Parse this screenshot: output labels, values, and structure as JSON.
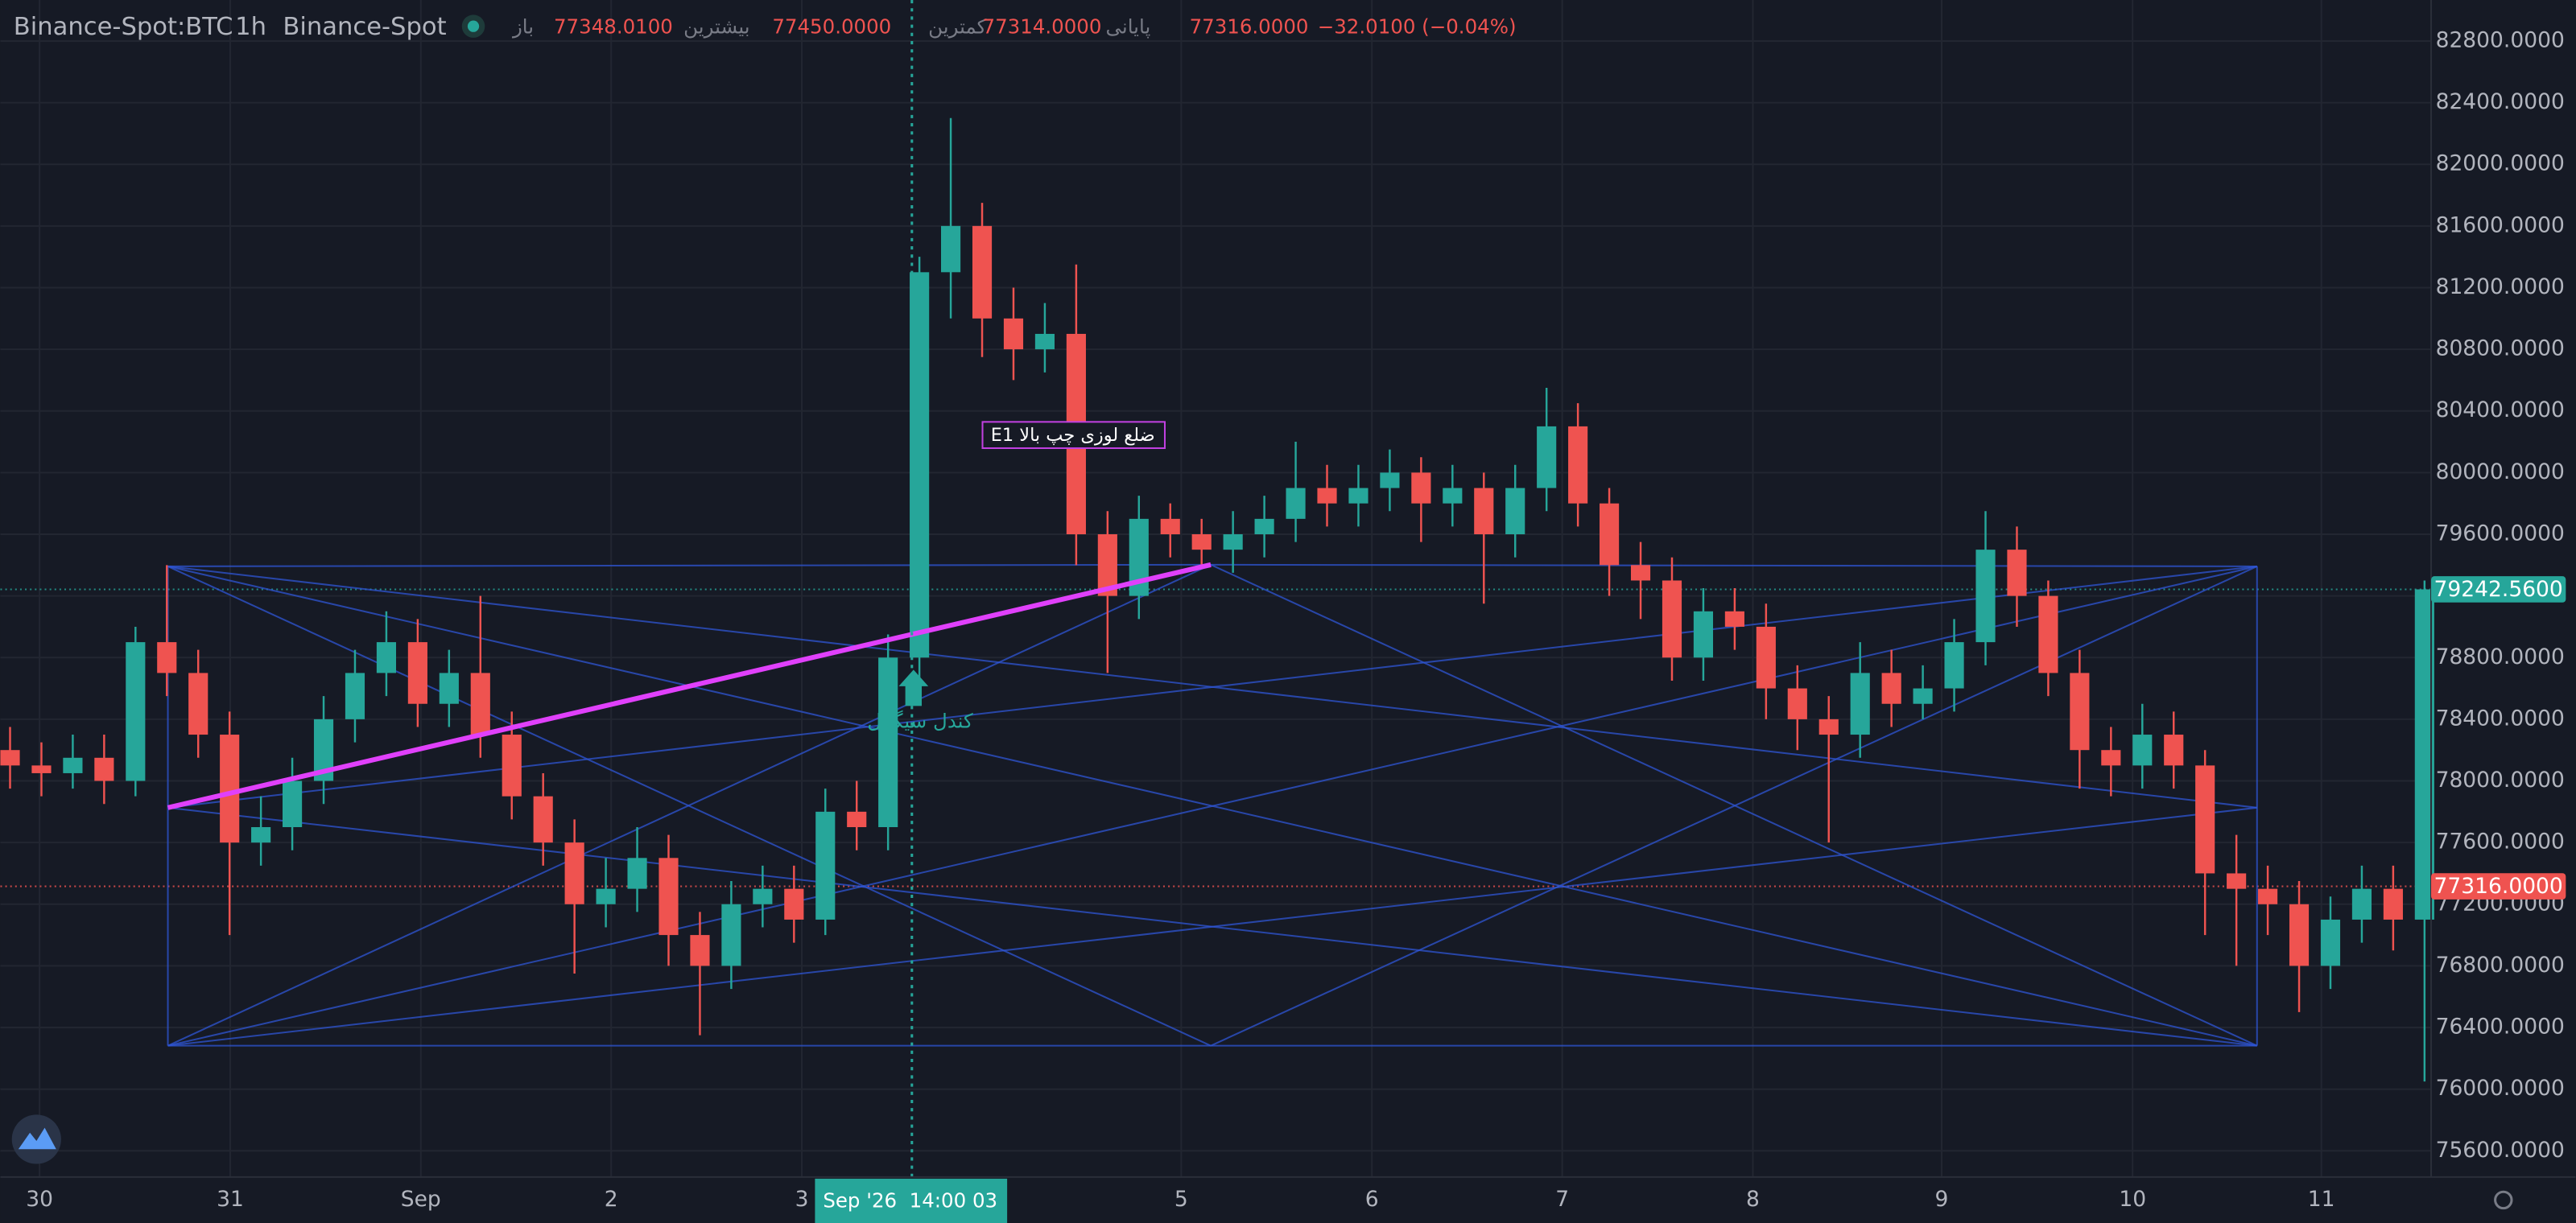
{
  "chart_data": {
    "type": "candlestick",
    "symbol": "Binance-Spot:BTC",
    "interval": "1h",
    "exchange": "Binance-Spot",
    "ohlc_legend": [
      {
        "label": "باز",
        "value": "77348.0100"
      },
      {
        "label": "بیشترین",
        "value": "77450.0000"
      },
      {
        "label": "کمترین",
        "value": "77314.0000"
      },
      {
        "label": "پایانی",
        "value": "77316.0000"
      }
    ],
    "change": "−32.0100 (−0.04%)",
    "up_color": "#26a69a",
    "down_color": "#ef5350",
    "grid": true,
    "open": [
      78200,
      78100,
      78050,
      78150,
      78000,
      78900,
      78700,
      78300,
      77600,
      77700,
      78000,
      78400,
      78700,
      78900,
      78500,
      78700,
      78300,
      77900,
      77600,
      77200,
      77300,
      77500,
      77000,
      76800,
      77200,
      77300,
      77100,
      77800,
      77700,
      78800,
      81300,
      81600,
      81000,
      80800,
      80900,
      79600,
      79200,
      79700,
      79600,
      79500,
      79600,
      79700,
      79900,
      79800,
      79900,
      80000,
      79800,
      79900,
      79600,
      79900,
      80300,
      79800,
      79400,
      79300,
      78800,
      79100,
      79000,
      78600,
      78400,
      78300,
      78700,
      78500,
      78600,
      78900,
      79500,
      79200,
      78700,
      78200,
      78100,
      78300,
      78100,
      77400,
      77300,
      77200,
      76800,
      77100,
      77300,
      77100
    ],
    "high": [
      78350,
      78250,
      78300,
      78300,
      79000,
      79400,
      78850,
      78450,
      77900,
      78150,
      78550,
      78850,
      79100,
      79050,
      78850,
      79200,
      78450,
      78050,
      77750,
      77500,
      77700,
      77650,
      77150,
      77350,
      77450,
      77450,
      77950,
      78000,
      78950,
      81400,
      82300,
      81750,
      81200,
      81100,
      81350,
      79750,
      79850,
      79800,
      79700,
      79750,
      79850,
      80200,
      80050,
      80050,
      80150,
      80100,
      80050,
      80000,
      80050,
      80550,
      80450,
      79900,
      79550,
      79450,
      79250,
      79250,
      79150,
      78750,
      78550,
      78900,
      78850,
      78750,
      79050,
      79750,
      79650,
      79300,
      78850,
      78350,
      78500,
      78450,
      78200,
      77650,
      77450,
      77350,
      77250,
      77450,
      77450,
      79300
    ],
    "low": [
      77950,
      77900,
      77950,
      77850,
      77900,
      78550,
      78150,
      77000,
      77450,
      77550,
      77850,
      78250,
      78550,
      78350,
      78350,
      78150,
      77750,
      77450,
      76750,
      77050,
      77150,
      76800,
      76350,
      76650,
      77050,
      76950,
      77000,
      77550,
      77550,
      78500,
      81000,
      80750,
      80600,
      80650,
      79400,
      78700,
      79050,
      79450,
      79400,
      79350,
      79450,
      79550,
      79650,
      79650,
      79750,
      79550,
      79650,
      79150,
      79450,
      79750,
      79650,
      79200,
      79050,
      78650,
      78650,
      78850,
      78400,
      78200,
      77600,
      78150,
      78350,
      78400,
      78450,
      78750,
      79000,
      78550,
      77950,
      77900,
      77950,
      77950,
      77000,
      76800,
      77000,
      76500,
      76650,
      76950,
      76900,
      76050
    ],
    "close": [
      78100,
      78050,
      78150,
      78000,
      78900,
      78700,
      78300,
      77600,
      77700,
      78000,
      78400,
      78700,
      78900,
      78500,
      78700,
      78300,
      77900,
      77600,
      77200,
      77300,
      77500,
      77000,
      76800,
      77200,
      77300,
      77100,
      77800,
      77700,
      78800,
      81300,
      81600,
      81000,
      80800,
      80900,
      79600,
      79200,
      79700,
      79600,
      79500,
      79600,
      79700,
      79900,
      79800,
      79900,
      80000,
      79800,
      79900,
      79600,
      79900,
      80300,
      79800,
      79400,
      79300,
      78800,
      79100,
      79000,
      78600,
      78400,
      78300,
      78700,
      78500,
      78600,
      78900,
      79500,
      79200,
      78700,
      78200,
      78100,
      78300,
      78100,
      77400,
      77300,
      77200,
      76800,
      77100,
      77300,
      77100,
      79242.56
    ],
    "xlim": [
      -0.31,
      77.21
    ],
    "xticks": [
      {
        "value": 0.94,
        "label": "30"
      },
      {
        "value": 7.02,
        "label": "31"
      },
      {
        "value": 13.1,
        "label": "Sep"
      },
      {
        "value": 19.17,
        "label": "2"
      },
      {
        "value": 25.25,
        "label": "3"
      },
      {
        "value": 37.35,
        "label": "5"
      },
      {
        "value": 43.43,
        "label": "6"
      },
      {
        "value": 49.5,
        "label": "7"
      },
      {
        "value": 55.58,
        "label": "8"
      },
      {
        "value": 61.6,
        "label": "9"
      },
      {
        "value": 67.69,
        "label": "10"
      },
      {
        "value": 73.71,
        "label": "11"
      }
    ],
    "ylim": [
      75430,
      83066
    ],
    "yticks": [
      {
        "value": 75600,
        "label": "75600.0000"
      },
      {
        "value": 76000,
        "label": "76000.0000"
      },
      {
        "value": 76400,
        "label": "76400.0000"
      },
      {
        "value": 76800,
        "label": "76800.0000"
      },
      {
        "value": 77200,
        "label": "77200.0000"
      },
      {
        "value": 77600,
        "label": "77600.0000"
      },
      {
        "value": 78000,
        "label": "78000.0000"
      },
      {
        "value": 78400,
        "label": "78400.0000"
      },
      {
        "value": 78800,
        "label": "78800.0000"
      },
      {
        "value": 79200,
        "label": "79200.0000"
      },
      {
        "value": 79600,
        "label": "79600.0000"
      },
      {
        "value": 80000,
        "label": "80000.0000"
      },
      {
        "value": 80400,
        "label": "80400.0000"
      },
      {
        "value": 80800,
        "label": "80800.0000"
      },
      {
        "value": 81200,
        "label": "81200.0000"
      },
      {
        "value": 81600,
        "label": "81600.0000"
      },
      {
        "value": 82000,
        "label": "82000.0000"
      },
      {
        "value": 82400,
        "label": "82400.0000"
      },
      {
        "value": 82800,
        "label": "82800.0000"
      }
    ],
    "price_lines": [
      {
        "value": 79242.56,
        "label": "79242.5600",
        "color": "#26a69a"
      },
      {
        "value": 77316,
        "label": "77316.0000",
        "color": "#ef5350"
      }
    ],
    "crosshair_label": "Sep '26  14:00 03",
    "annotations": [
      "E1 ضلع لوزی چپ بالا",
      "کندل سیگنال"
    ]
  }
}
